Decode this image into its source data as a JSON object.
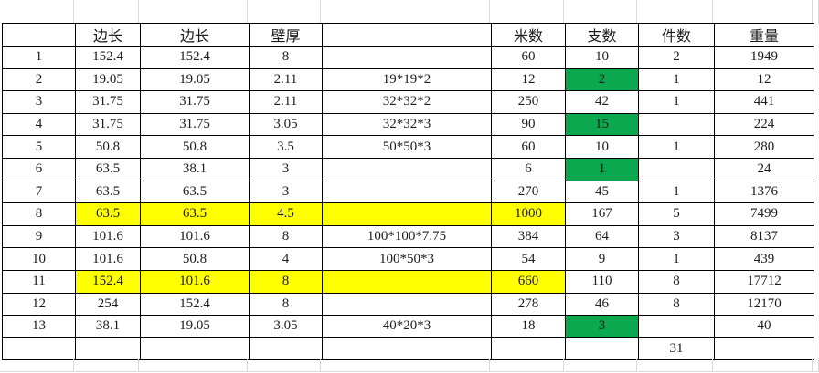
{
  "sheet": {
    "headers": [
      "",
      "边长",
      "边长",
      "壁厚",
      "",
      "米数",
      "支数",
      "件数",
      "重量"
    ],
    "rows": [
      {
        "cells": [
          "1",
          "152.4",
          "152.4",
          "8",
          "",
          "60",
          "10",
          "2",
          "1949"
        ],
        "yellow_cols": [],
        "green_cols": []
      },
      {
        "cells": [
          "2",
          "19.05",
          "19.05",
          "2.11",
          "19*19*2",
          "12",
          "2",
          "1",
          "12"
        ],
        "yellow_cols": [],
        "green_cols": [
          6
        ]
      },
      {
        "cells": [
          "3",
          "31.75",
          "31.75",
          "2.11",
          "32*32*2",
          "250",
          "42",
          "1",
          "441"
        ],
        "yellow_cols": [],
        "green_cols": []
      },
      {
        "cells": [
          "4",
          "31.75",
          "31.75",
          "3.05",
          "32*32*3",
          "90",
          "15",
          "",
          "224"
        ],
        "yellow_cols": [],
        "green_cols": [
          6
        ]
      },
      {
        "cells": [
          "5",
          "50.8",
          "50.8",
          "3.5",
          "50*50*3",
          "60",
          "10",
          "1",
          "280"
        ],
        "yellow_cols": [],
        "green_cols": []
      },
      {
        "cells": [
          "6",
          "63.5",
          "38.1",
          "3",
          "",
          "6",
          "1",
          "",
          "24"
        ],
        "yellow_cols": [],
        "green_cols": [
          6
        ]
      },
      {
        "cells": [
          "7",
          "63.5",
          "63.5",
          "3",
          "",
          "270",
          "45",
          "1",
          "1376"
        ],
        "yellow_cols": [],
        "green_cols": []
      },
      {
        "cells": [
          "8",
          "63.5",
          "63.5",
          "4.5",
          "",
          "1000",
          "167",
          "5",
          "7499"
        ],
        "yellow_cols": [
          1,
          2,
          3,
          4,
          5
        ],
        "green_cols": []
      },
      {
        "cells": [
          "9",
          "101.6",
          "101.6",
          "8",
          "100*100*7.75",
          "384",
          "64",
          "3",
          "8137"
        ],
        "yellow_cols": [],
        "green_cols": []
      },
      {
        "cells": [
          "10",
          "101.6",
          "50.8",
          "4",
          "100*50*3",
          "54",
          "9",
          "1",
          "439"
        ],
        "yellow_cols": [],
        "green_cols": []
      },
      {
        "cells": [
          "11",
          "152.4",
          "101.6",
          "8",
          "",
          "660",
          "110",
          "8",
          "17712"
        ],
        "yellow_cols": [
          1,
          2,
          3,
          4,
          5
        ],
        "green_cols": []
      },
      {
        "cells": [
          "12",
          "254",
          "152.4",
          "8",
          "",
          "278",
          "46",
          "8",
          "12170"
        ],
        "yellow_cols": [],
        "green_cols": []
      },
      {
        "cells": [
          "13",
          "38.1",
          "19.05",
          "3.05",
          "40*20*3",
          "18",
          "3",
          "",
          "40"
        ],
        "yellow_cols": [],
        "green_cols": [
          6
        ]
      },
      {
        "cells": [
          "",
          "",
          "",
          "",
          "",
          "",
          "",
          "31",
          ""
        ],
        "yellow_cols": [],
        "green_cols": []
      }
    ],
    "colors": {
      "highlight_yellow": "#ffff00",
      "highlight_green": "#0ba84f",
      "cell_border": "#000000",
      "gridline": "#d9d9d9",
      "text": "#1c1c1c"
    }
  }
}
